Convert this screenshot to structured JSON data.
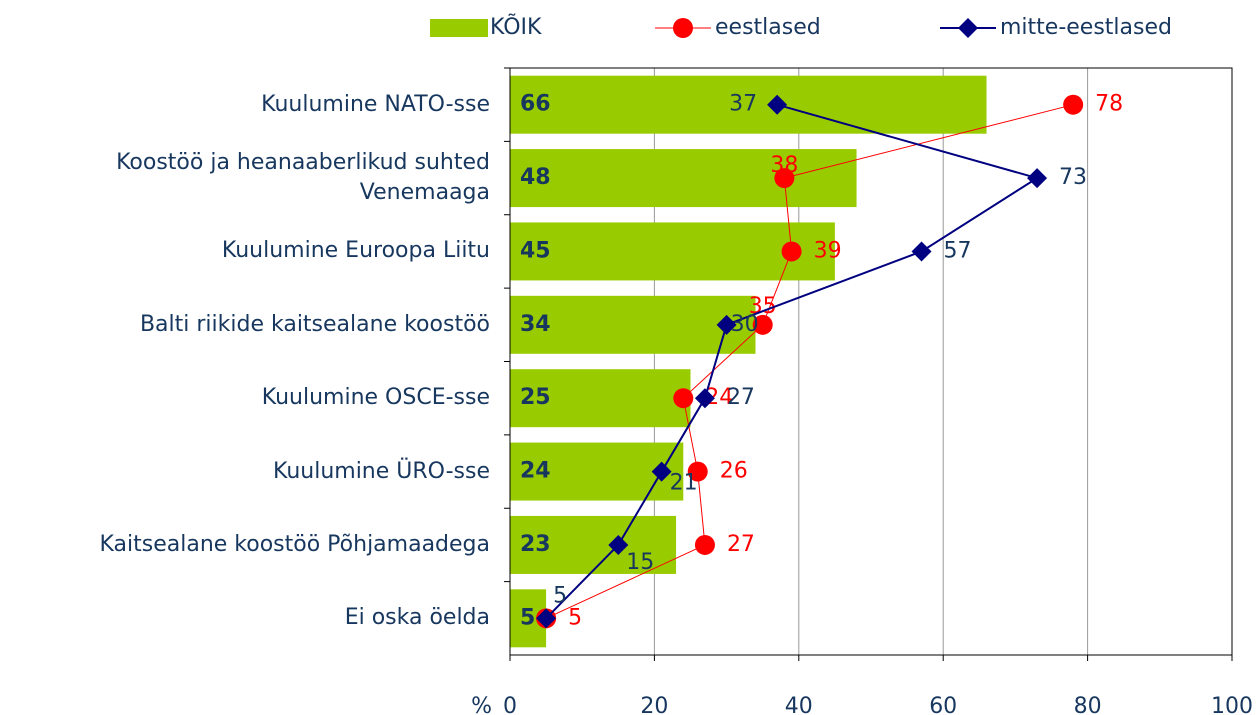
{
  "chart_data": {
    "type": "bar",
    "categories": [
      "Kuulumine NATO-sse",
      "Koostöö ja heanaaberlikud suhted Venemaaga",
      "Kuulumine Euroopa Liitu",
      "Balti riikide kaitsealane koostöö",
      "Kuulumine OSCE-sse",
      "Kuulumine ÜRO-sse",
      "Kaitsealane koostöö Põhjamaadega",
      "Ei oska öelda"
    ],
    "series": [
      {
        "name": "KÕIK",
        "type": "bar",
        "color": "#99cc00",
        "values": [
          66,
          48,
          45,
          34,
          25,
          24,
          23,
          5
        ]
      },
      {
        "name": "eestlased",
        "type": "line",
        "color": "#ff0000",
        "values": [
          78,
          38,
          39,
          35,
          24,
          26,
          27,
          5
        ]
      },
      {
        "name": "mitte-eestlased",
        "type": "line",
        "color": "#000080",
        "values": [
          37,
          73,
          57,
          30,
          27,
          21,
          15,
          5
        ]
      }
    ],
    "xlabel": "%",
    "xlim": [
      0,
      100
    ],
    "xticks": [
      0,
      20,
      40,
      60,
      80,
      100
    ],
    "grid": true,
    "legend": "top"
  }
}
